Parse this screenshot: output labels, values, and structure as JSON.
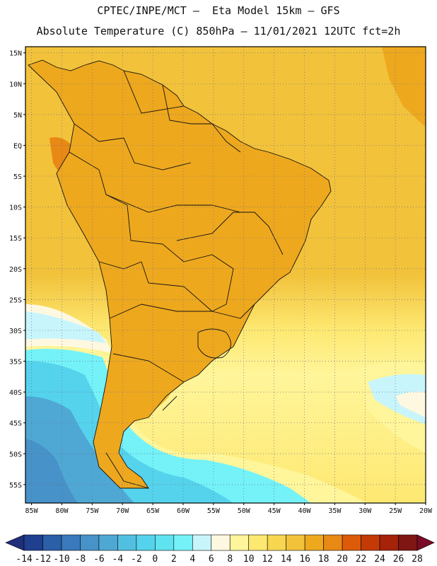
{
  "header": {
    "line1": "CPTEC/INPE/MCT –  Eta Model 15km – GFS",
    "line2": "Absolute Temperature (C) 850hPa – 11/01/2021 12UTC fct=2h"
  },
  "map": {
    "region": "South America",
    "lon_range": [
      -86,
      -20
    ],
    "lat_range": [
      -58,
      16
    ],
    "lat_labels": [
      "15N",
      "10N",
      "5N",
      "EQ",
      "5S",
      "10S",
      "15S",
      "20S",
      "25S",
      "30S",
      "35S",
      "40S",
      "45S",
      "50S",
      "55S"
    ],
    "lat_values": [
      15,
      10,
      5,
      0,
      -5,
      -10,
      -15,
      -20,
      -25,
      -30,
      -35,
      -40,
      -45,
      -50,
      -55
    ],
    "lon_labels": [
      "85W",
      "80W",
      "75W",
      "70W",
      "65W",
      "60W",
      "55W",
      "50W",
      "45W",
      "40W",
      "35W",
      "30W",
      "25W",
      "20W"
    ],
    "lon_values": [
      -85,
      -80,
      -75,
      -70,
      -65,
      -60,
      -55,
      -50,
      -45,
      -40,
      -35,
      -30,
      -25,
      -20
    ],
    "grid": "dotted"
  },
  "legend": {
    "labels": [
      "-14",
      "-12",
      "-10",
      "-8",
      "-6",
      "-4",
      "-2",
      "0",
      "2",
      "4",
      "6",
      "8",
      "10",
      "12",
      "14",
      "16",
      "18",
      "20",
      "22",
      "24",
      "26",
      "28"
    ],
    "colors": [
      "#1f3f8f",
      "#2b5fa7",
      "#3a79bb",
      "#4792c8",
      "#4fa8d4",
      "#52bfe0",
      "#55d3ec",
      "#5fe3f0",
      "#74f2f8",
      "#c8f5fb",
      "#fff8e1",
      "#fff59a",
      "#fde871",
      "#f8d650",
      "#f2c23b",
      "#eea81e",
      "#e88815",
      "#dd5b08",
      "#c43a07",
      "#a52309",
      "#801613"
    ],
    "under_color": "#1f2f7a",
    "over_color": "#7a0a26"
  }
}
